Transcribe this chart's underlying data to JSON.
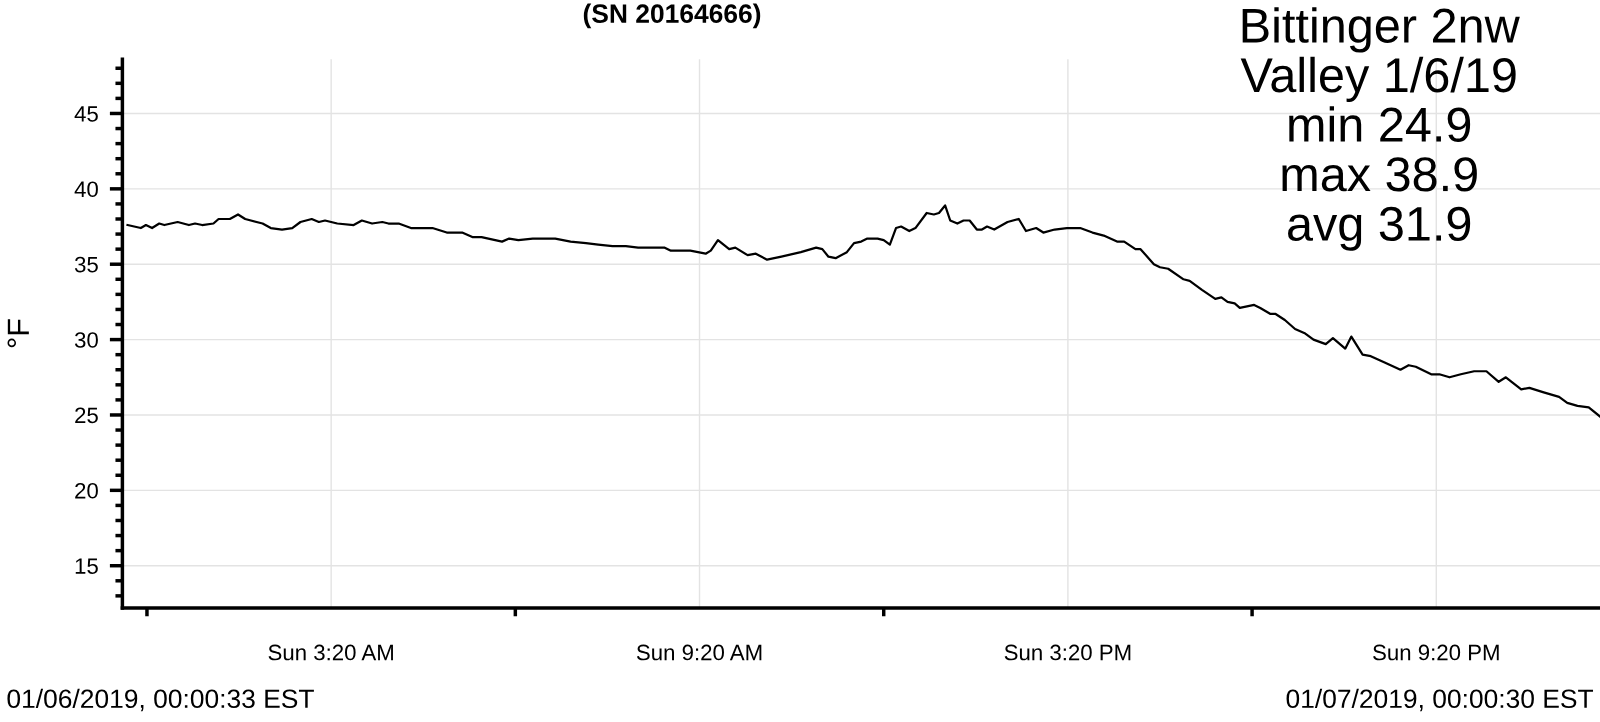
{
  "chart_data": {
    "type": "line",
    "title": "(SN 20164666)",
    "ylabel": "°F",
    "annotations": [
      "Bittinger 2nw\nValley 1/6/19\nmin 24.9\nmax 38.9\navg 31.9",
      "01/06/2019, 00:00:33 EST",
      "01/07/2019, 00:00:30 EST"
    ],
    "series": [
      {
        "color": "#000000",
        "x": [
          "2019-01-06T00:01",
          "2019-01-06T00:14",
          "2019-01-06T00:19",
          "2019-01-06T00:25",
          "2019-01-06T00:32",
          "2019-01-06T00:37",
          "2019-01-06T00:50",
          "2019-01-06T01:01",
          "2019-01-06T01:07",
          "2019-01-06T01:14",
          "2019-01-06T01:25",
          "2019-01-06T01:30",
          "2019-01-06T01:41",
          "2019-01-06T01:49",
          "2019-01-06T01:56",
          "2019-01-06T02:13",
          "2019-01-06T02:21",
          "2019-01-06T02:32",
          "2019-01-06T02:42",
          "2019-01-06T02:50",
          "2019-01-06T03:01",
          "2019-01-06T03:08",
          "2019-01-06T03:14",
          "2019-01-06T03:26",
          "2019-01-06T03:42",
          "2019-01-06T03:50",
          "2019-01-06T04:00",
          "2019-01-06T04:10",
          "2019-01-06T04:16",
          "2019-01-06T04:26",
          "2019-01-06T04:38",
          "2019-01-06T04:59",
          "2019-01-06T05:13",
          "2019-01-06T05:28",
          "2019-01-06T05:38",
          "2019-01-06T05:47",
          "2019-01-06T06:07",
          "2019-01-06T06:14",
          "2019-01-06T06:23",
          "2019-01-06T06:37",
          "2019-01-06T06:46",
          "2019-01-06T06:59",
          "2019-01-06T07:14",
          "2019-01-06T07:29",
          "2019-01-06T07:41",
          "2019-01-06T07:55",
          "2019-01-06T08:08",
          "2019-01-06T08:20",
          "2019-01-06T08:26",
          "2019-01-06T08:46",
          "2019-01-06T08:52",
          "2019-01-06T09:02",
          "2019-01-06T09:11",
          "2019-01-06T09:26",
          "2019-01-06T09:31",
          "2019-01-06T09:38",
          "2019-01-06T09:49",
          "2019-01-06T09:55",
          "2019-01-06T10:07",
          "2019-01-06T10:15",
          "2019-01-06T10:26",
          "2019-01-06T10:40",
          "2019-01-06T10:59",
          "2019-01-06T11:14",
          "2019-01-06T11:20",
          "2019-01-06T11:26",
          "2019-01-06T11:33",
          "2019-01-06T11:44",
          "2019-01-06T11:51",
          "2019-01-06T11:58",
          "2019-01-06T12:04",
          "2019-01-06T12:14",
          "2019-01-06T12:20",
          "2019-01-06T12:26",
          "2019-01-06T12:32",
          "2019-01-06T12:37",
          "2019-01-06T12:45",
          "2019-01-06T12:51",
          "2019-01-06T13:02",
          "2019-01-06T13:09",
          "2019-01-06T13:14",
          "2019-01-06T13:20",
          "2019-01-06T13:25",
          "2019-01-06T13:32",
          "2019-01-06T13:38",
          "2019-01-06T13:44",
          "2019-01-06T13:51",
          "2019-01-06T13:56",
          "2019-01-06T14:01",
          "2019-01-06T14:08",
          "2019-01-06T14:21",
          "2019-01-06T14:32",
          "2019-01-06T14:39",
          "2019-01-06T14:49",
          "2019-01-06T14:56",
          "2019-01-06T15:07",
          "2019-01-06T15:19",
          "2019-01-06T15:32",
          "2019-01-06T15:44",
          "2019-01-06T15:55",
          "2019-01-06T16:08",
          "2019-01-06T16:15",
          "2019-01-06T16:26",
          "2019-01-06T16:31",
          "2019-01-06T16:44",
          "2019-01-06T16:50",
          "2019-01-06T16:58",
          "2019-01-06T17:13",
          "2019-01-06T17:19",
          "2019-01-06T17:31",
          "2019-01-06T17:44",
          "2019-01-06T17:50",
          "2019-01-06T17:56",
          "2019-01-06T18:03",
          "2019-01-06T18:08",
          "2019-01-06T18:22",
          "2019-01-06T18:28",
          "2019-01-06T18:38",
          "2019-01-06T18:43",
          "2019-01-06T18:52",
          "2019-01-06T19:02",
          "2019-01-06T19:12",
          "2019-01-06T19:20",
          "2019-01-06T19:32",
          "2019-01-06T19:39",
          "2019-01-06T19:51",
          "2019-01-06T19:57",
          "2019-01-06T20:08",
          "2019-01-06T20:16",
          "2019-01-06T20:29",
          "2019-01-06T20:45",
          "2019-01-06T20:53",
          "2019-01-06T21:00",
          "2019-01-06T21:15",
          "2019-01-06T21:23",
          "2019-01-06T21:33",
          "2019-01-06T21:44",
          "2019-01-06T21:57",
          "2019-01-06T22:09",
          "2019-01-06T22:21",
          "2019-01-06T22:28",
          "2019-01-06T22:43",
          "2019-01-06T22:51",
          "2019-01-06T23:05",
          "2019-01-06T23:20",
          "2019-01-06T23:28",
          "2019-01-06T23:38",
          "2019-01-06T23:49",
          "2019-01-07T00:00"
        ],
        "values": [
          37.6,
          37.4,
          37.6,
          37.4,
          37.7,
          37.6,
          37.8,
          37.6,
          37.7,
          37.6,
          37.7,
          38.0,
          38.0,
          38.3,
          38.0,
          37.7,
          37.4,
          37.3,
          37.4,
          37.8,
          38.0,
          37.8,
          37.9,
          37.7,
          37.6,
          37.9,
          37.7,
          37.8,
          37.7,
          37.7,
          37.4,
          37.4,
          37.1,
          37.1,
          36.8,
          36.8,
          36.5,
          36.7,
          36.6,
          36.7,
          36.7,
          36.7,
          36.5,
          36.4,
          36.3,
          36.2,
          36.2,
          36.1,
          36.1,
          36.1,
          35.9,
          35.9,
          35.9,
          35.7,
          35.9,
          36.6,
          36.0,
          36.1,
          35.6,
          35.7,
          35.3,
          35.5,
          35.8,
          36.1,
          36.0,
          35.5,
          35.4,
          35.8,
          36.4,
          36.5,
          36.7,
          36.7,
          36.6,
          36.3,
          37.4,
          37.5,
          37.2,
          37.4,
          38.4,
          38.3,
          38.4,
          38.9,
          37.9,
          37.7,
          37.9,
          37.9,
          37.3,
          37.3,
          37.5,
          37.3,
          37.8,
          38.0,
          37.2,
          37.4,
          37.1,
          37.3,
          37.4,
          37.4,
          37.1,
          36.9,
          36.5,
          36.5,
          36.0,
          36.0,
          35.0,
          34.8,
          34.7,
          34.0,
          33.9,
          33.3,
          32.7,
          32.8,
          32.5,
          32.4,
          32.1,
          32.3,
          32.1,
          31.7,
          31.7,
          31.3,
          30.7,
          30.4,
          30.0,
          29.7,
          30.1,
          29.4,
          30.2,
          29.0,
          28.9,
          28.5,
          28.0,
          28.3,
          28.2,
          27.7,
          27.7,
          27.5,
          27.7,
          27.9,
          27.9,
          27.2,
          27.5,
          26.7,
          26.8,
          26.5,
          26.2,
          25.8,
          25.6,
          25.5,
          24.9
        ]
      }
    ],
    "xlim": [
      "2019-01-05T23:56",
      "2019-01-07T00:00"
    ],
    "xticks": [
      {
        "value": "2019-01-06T00:20",
        "label": null
      },
      {
        "value": "2019-01-06T03:20",
        "label": "Sun 3:20 AM"
      },
      {
        "value": "2019-01-06T06:20",
        "label": null
      },
      {
        "value": "2019-01-06T09:20",
        "label": "Sun 9:20 AM"
      },
      {
        "value": "2019-01-06T12:20",
        "label": null
      },
      {
        "value": "2019-01-06T15:20",
        "label": "Sun 3:20 PM"
      },
      {
        "value": "2019-01-06T18:20",
        "label": null
      },
      {
        "value": "2019-01-06T21:20",
        "label": "Sun 9:20 PM"
      }
    ],
    "ylim": [
      12.2,
      48.6
    ],
    "yticks": [
      {
        "value": 13,
        "label": null
      },
      {
        "value": 14,
        "label": null
      },
      15,
      {
        "value": 16,
        "label": null
      },
      {
        "value": 17,
        "label": null
      },
      {
        "value": 18,
        "label": null
      },
      {
        "value": 19,
        "label": null
      },
      20,
      {
        "value": 21,
        "label": null
      },
      {
        "value": 22,
        "label": null
      },
      {
        "value": 23,
        "label": null
      },
      {
        "value": 24,
        "label": null
      },
      25,
      {
        "value": 26,
        "label": null
      },
      {
        "value": 27,
        "label": null
      },
      {
        "value": 28,
        "label": null
      },
      {
        "value": 29,
        "label": null
      },
      30,
      {
        "value": 31,
        "label": null
      },
      {
        "value": 32,
        "label": null
      },
      {
        "value": 33,
        "label": null
      },
      {
        "value": 34,
        "label": null
      },
      35,
      {
        "value": 36,
        "label": null
      },
      {
        "value": 37,
        "label": null
      },
      {
        "value": 38,
        "label": null
      },
      {
        "value": 39,
        "label": null
      },
      40,
      {
        "value": 41,
        "label": null
      },
      {
        "value": 42,
        "label": null
      },
      {
        "value": 43,
        "label": null
      },
      {
        "value": 44,
        "label": null
      },
      45,
      {
        "value": 46,
        "label": null
      },
      {
        "value": 47,
        "label": null
      },
      {
        "value": 48,
        "label": null
      }
    ],
    "grid": true,
    "legend": false,
    "marker": "none",
    "line_style": "solid"
  }
}
